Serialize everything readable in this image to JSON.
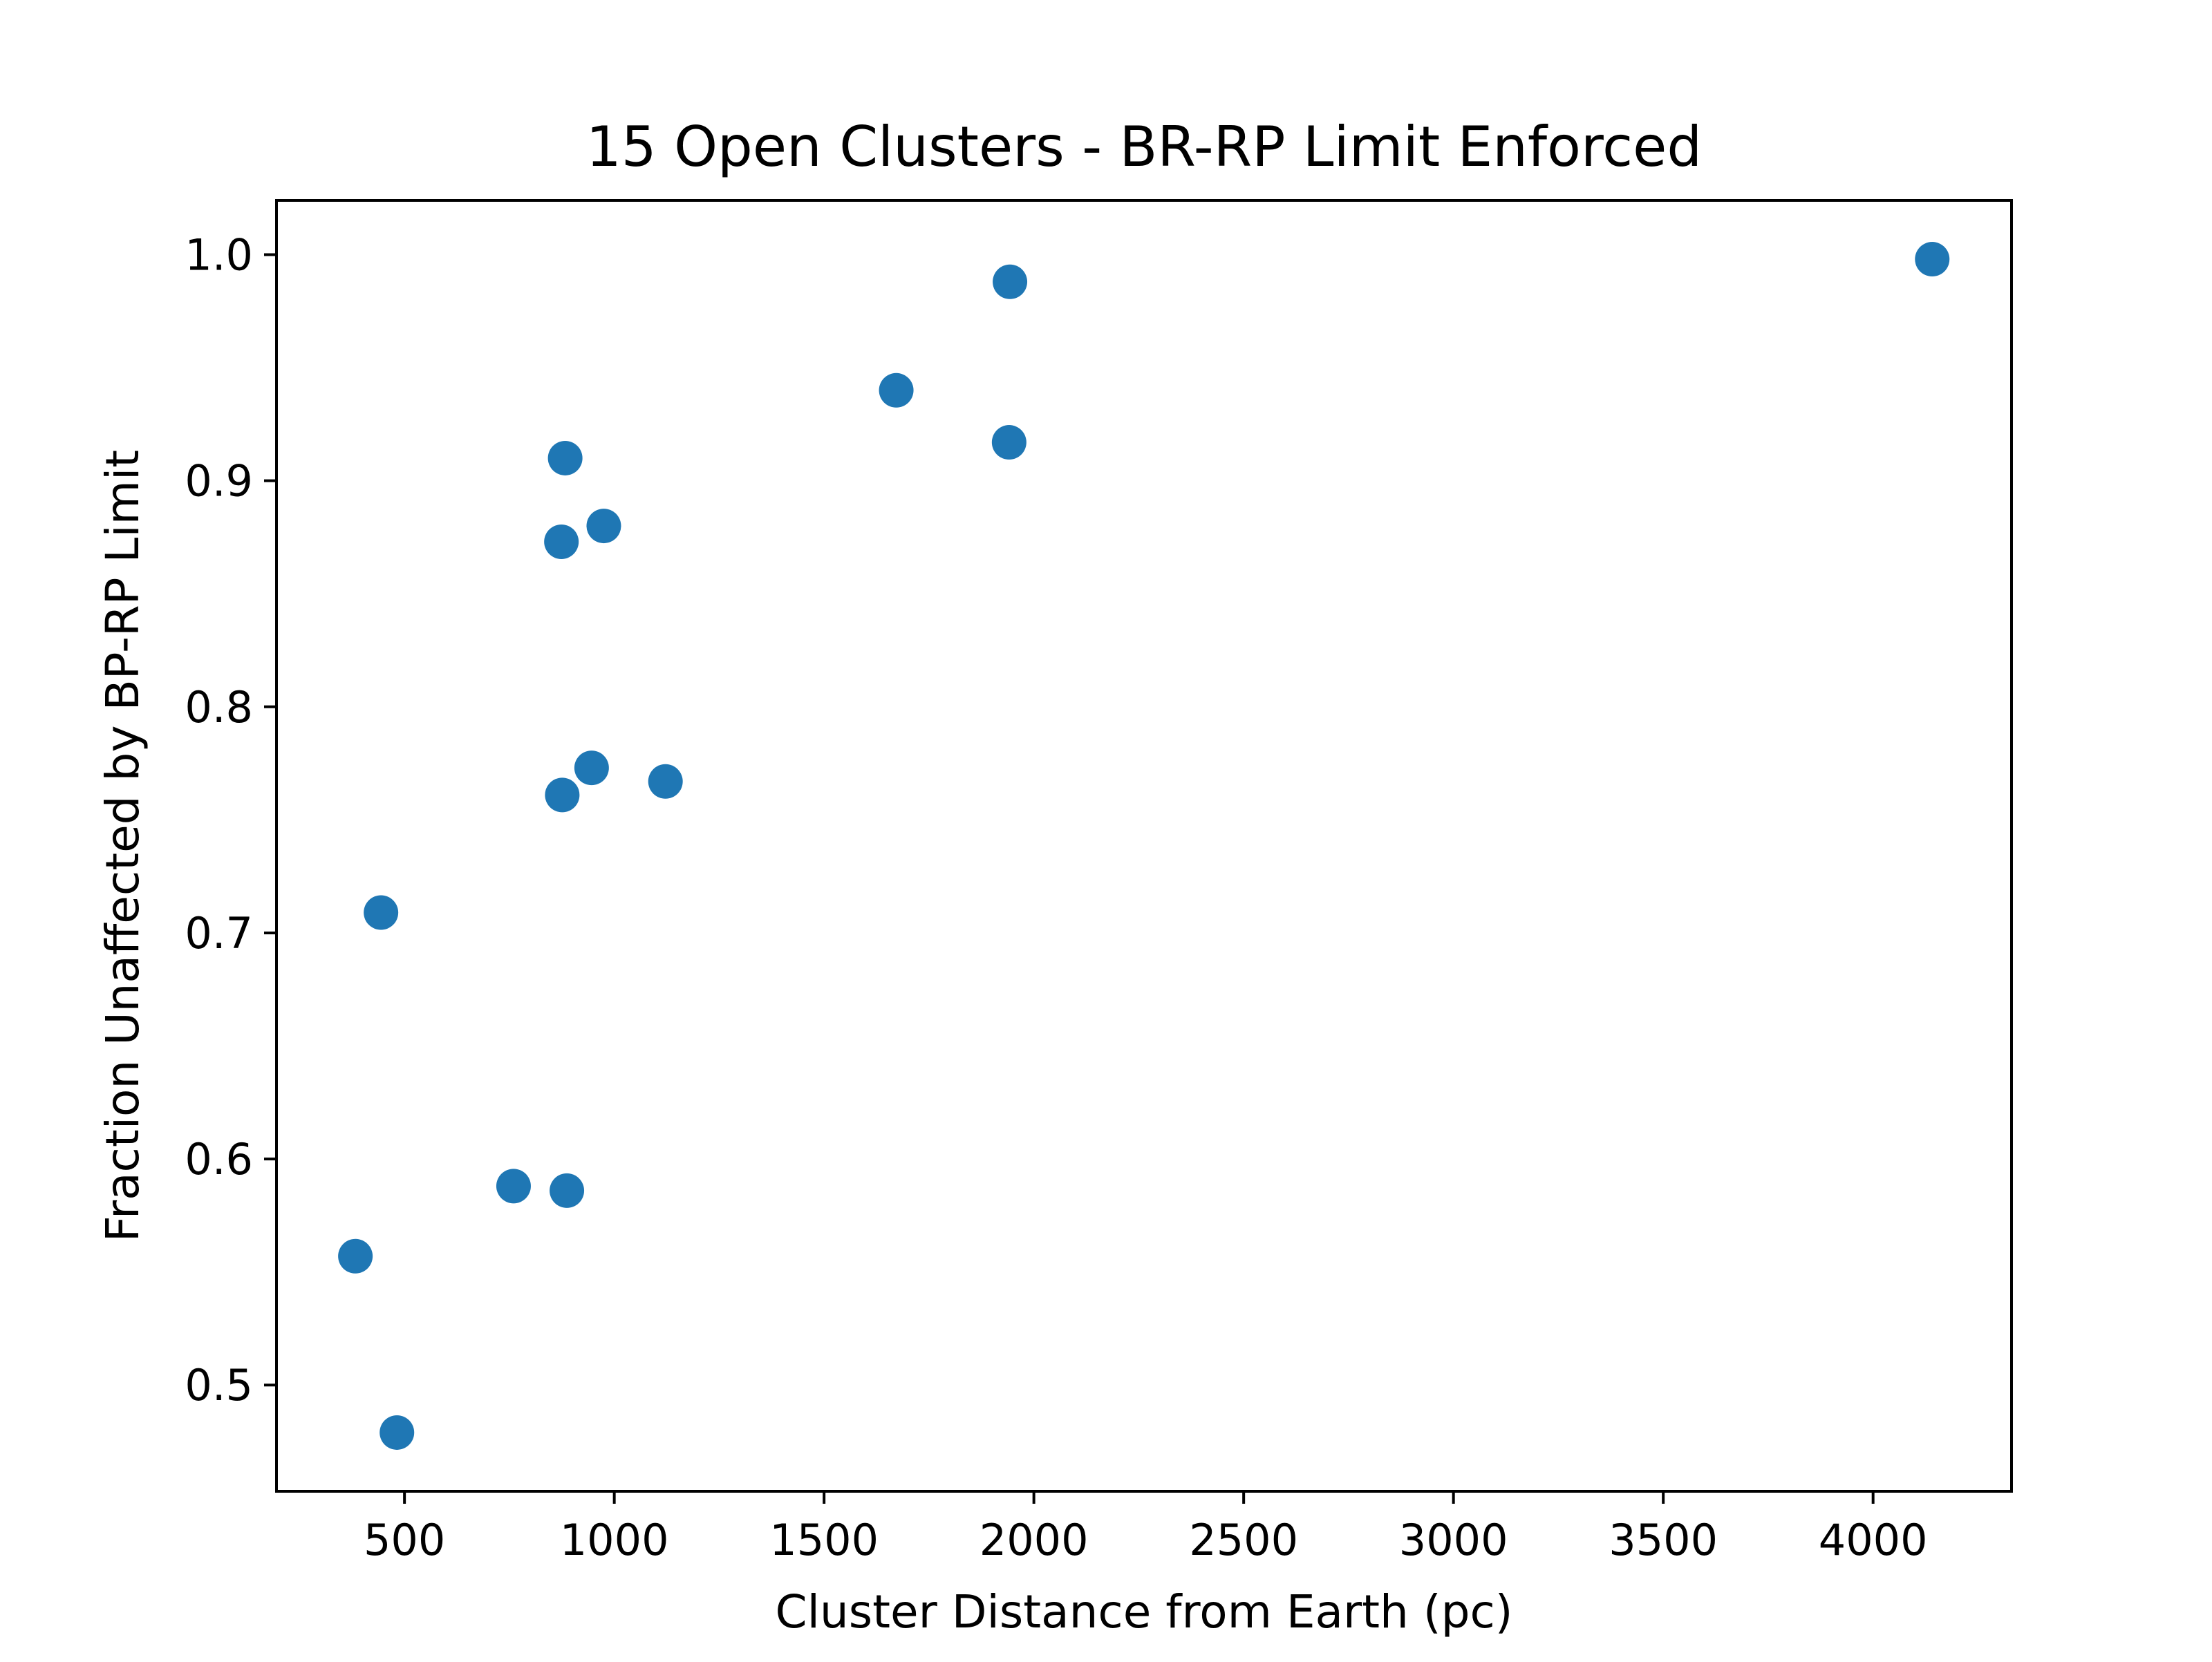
{
  "chart_data": {
    "type": "scatter",
    "title": "15 Open Clusters - BR-RP Limit Enforced",
    "xlabel": "Cluster Distance from Earth (pc)",
    "ylabel": "Fraction Unaffected by BP-RP Limit",
    "xlim": [
      195,
      4330
    ],
    "ylim": [
      0.453,
      1.024
    ],
    "xticks": [
      500,
      1000,
      1500,
      2000,
      2500,
      3000,
      3500,
      4000
    ],
    "yticks": [
      0.5,
      0.6,
      0.7,
      0.8,
      0.9,
      1.0
    ],
    "xtick_labels": [
      "500",
      "1000",
      "1500",
      "2000",
      "2500",
      "3000",
      "3500",
      "4000"
    ],
    "ytick_labels": [
      "0.5",
      "0.6",
      "0.7",
      "0.8",
      "0.9",
      "1.0"
    ],
    "grid": false,
    "marker_color": "#1f77b4",
    "points": [
      {
        "x": 383,
        "y": 0.557
      },
      {
        "x": 482,
        "y": 0.479
      },
      {
        "x": 444,
        "y": 0.709
      },
      {
        "x": 760,
        "y": 0.588
      },
      {
        "x": 887,
        "y": 0.586
      },
      {
        "x": 876,
        "y": 0.761
      },
      {
        "x": 946,
        "y": 0.773
      },
      {
        "x": 1122,
        "y": 0.767
      },
      {
        "x": 874,
        "y": 0.873
      },
      {
        "x": 975,
        "y": 0.88
      },
      {
        "x": 883,
        "y": 0.91
      },
      {
        "x": 1672,
        "y": 0.94
      },
      {
        "x": 1941,
        "y": 0.917
      },
      {
        "x": 1943,
        "y": 0.988
      },
      {
        "x": 4141,
        "y": 0.998
      }
    ]
  }
}
